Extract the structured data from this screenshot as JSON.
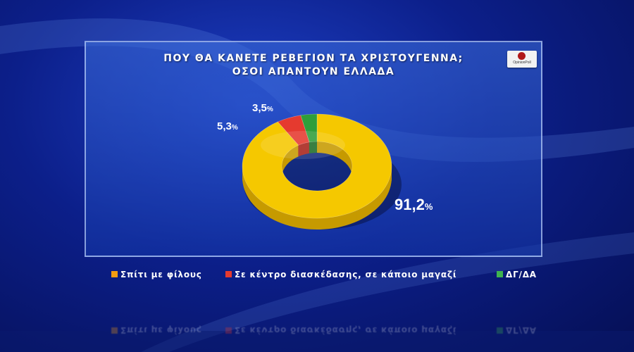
{
  "colors": {
    "home": "#f5c800",
    "venue": "#e53a2f",
    "dk": "#2f9e3b",
    "legend_home": "#f39c12",
    "legend_venue": "#e53a2f",
    "legend_dk": "#3fb34f"
  },
  "logo": {
    "text": "OpinionPoll"
  },
  "chart_data": {
    "type": "pie",
    "title": "ΠΟΥ ΘΑ ΚΑΝΕΤΕ ΡΕΒΕΓΙΟΝ ΤΑ ΧΡΙΣΤΟΥΓΕΝΝΑ;",
    "subtitle": "ΟΣΟΙ ΑΠΑΝΤΟΥΝ ΕΛΛΑΔΑ",
    "legend_position": "bottom",
    "slices": [
      {
        "label": "Σπίτι με φίλους",
        "value": 91.2,
        "display": "91,2"
      },
      {
        "label": "Σε κέντρο διασκέδασης, σε κάποιο μαγαζί",
        "value": 5.3,
        "display": "5,3"
      },
      {
        "label": "ΔΓ/ΔΑ",
        "value": 3.5,
        "display": "3,5"
      }
    ],
    "unit": "%"
  }
}
